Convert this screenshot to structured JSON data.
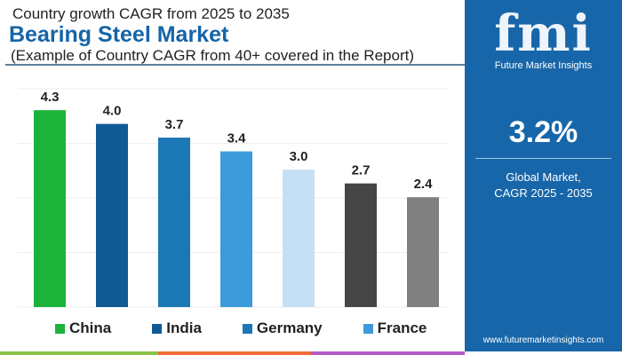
{
  "header": {
    "subtitle_top": "Country growth CAGR from 2025 to 2035",
    "title": "Bearing Steel Market",
    "note": "(Example of Country CAGR from 40+ covered in the Report)"
  },
  "chart_data": {
    "type": "bar",
    "title": "Bearing Steel Market",
    "values": [
      4.3,
      4.0,
      3.7,
      3.4,
      3.0,
      2.7,
      2.4
    ],
    "value_labels": [
      "4.3",
      "4.0",
      "3.7",
      "3.4",
      "3.0",
      "2.7",
      "2.4"
    ],
    "colors": [
      "#1db33a",
      "#0f5a94",
      "#1c77b5",
      "#3d9bdb",
      "#c5e0f5",
      "#454545",
      "#808080"
    ],
    "ylim": [
      0,
      4.5
    ],
    "grid": true,
    "legend": [
      {
        "name": "China",
        "color": "#1db33a"
      },
      {
        "name": "India",
        "color": "#0f5a94"
      },
      {
        "name": "Germany",
        "color": "#1c77b5"
      },
      {
        "name": "France",
        "color": "#3d9bdb"
      }
    ],
    "legend_position": "bottom"
  },
  "panel": {
    "logo": "fmi",
    "logo_sub": "Future Market Insights",
    "value": "3.2%",
    "caption_line1": "Global Market,",
    "caption_line2": "CAGR 2025 - 2035",
    "url": "www.futuremarketinsights.com",
    "color": "#1766a9"
  }
}
